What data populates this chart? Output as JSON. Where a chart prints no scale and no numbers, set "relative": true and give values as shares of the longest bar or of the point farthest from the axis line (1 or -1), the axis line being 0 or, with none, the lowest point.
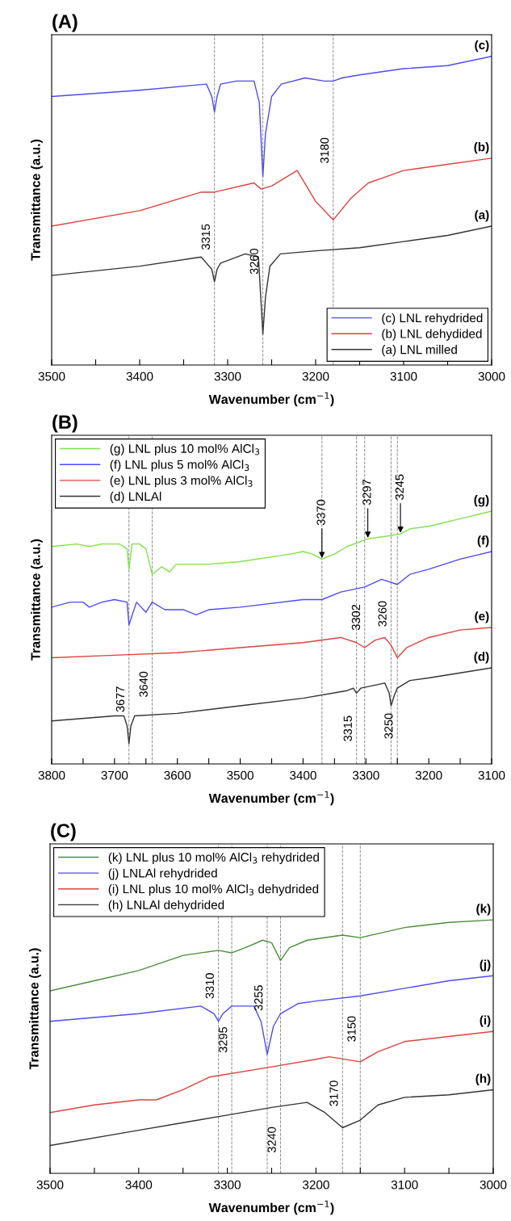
{
  "chart_data": [
    {
      "type": "line",
      "title": "(A)",
      "xlabel": "Wavenumber (cm$^{−1}$)",
      "ylabel": "Transmittance (a.u.)",
      "relative": true,
      "xlim": [
        3500,
        3000
      ],
      "xticks": [
        3500,
        {
          "value": 3450,
          "label": null
        },
        3400,
        {
          "value": 3350,
          "label": null
        },
        3300,
        {
          "value": 3250,
          "label": null
        },
        3200,
        {
          "value": 3150,
          "label": null
        },
        3100,
        {
          "value": 3050,
          "label": null
        },
        3000
      ],
      "legend": "bottom right",
      "series": [
        {
          "name": "(c) LNL rehydrided",
          "color": "#4b4bf5",
          "x": [
            3500,
            3400,
            3324,
            3318,
            3315,
            3312,
            3308,
            3290,
            3270,
            3264,
            3260,
            3257,
            3250,
            3239,
            3212,
            3190,
            3180,
            3170,
            3150,
            3100,
            3050,
            3000
          ],
          "values": [
            0.87,
            0.89,
            0.91,
            0.87,
            0.82,
            0.87,
            0.91,
            0.92,
            0.92,
            0.85,
            0.61,
            0.75,
            0.87,
            0.91,
            0.93,
            0.92,
            0.92,
            0.93,
            0.94,
            0.96,
            0.97,
            1.0
          ]
        },
        {
          "name": "(b) LNL dehydided",
          "color": "#e0413c",
          "x": [
            3500,
            3400,
            3330,
            3315,
            3270,
            3262,
            3250,
            3221,
            3200,
            3180,
            3160,
            3140,
            3120,
            3100,
            3050,
            3000
          ],
          "values": [
            0.45,
            0.5,
            0.56,
            0.56,
            0.59,
            0.57,
            0.58,
            0.63,
            0.53,
            0.47,
            0.54,
            0.59,
            0.61,
            0.63,
            0.65,
            0.67
          ]
        },
        {
          "name": "(a) LNL milled",
          "color": "#333333",
          "x": [
            3500,
            3400,
            3330,
            3318,
            3315,
            3312,
            3308,
            3280,
            3265,
            3262,
            3260,
            3257,
            3252,
            3240,
            3200,
            3150,
            3100,
            3050,
            3000
          ],
          "values": [
            0.29,
            0.32,
            0.35,
            0.31,
            0.27,
            0.31,
            0.33,
            0.36,
            0.35,
            0.2,
            0.1,
            0.22,
            0.32,
            0.36,
            0.37,
            0.38,
            0.4,
            0.42,
            0.45
          ]
        }
      ],
      "ref_lines": [
        {
          "axis": "x",
          "value": 3315,
          "label": "3315",
          "color": "#888888",
          "line_style": "dashed"
        },
        {
          "axis": "x",
          "value": 3260,
          "label": "3260",
          "color": "#888888",
          "line_style": "dashed"
        },
        {
          "axis": "x",
          "value": 3180,
          "label": "3180",
          "color": "#888888",
          "line_style": "dashed"
        }
      ],
      "annotations": [
        {
          "text": "(c)",
          "x": 3000,
          "y": 1.0
        },
        {
          "text": "(b)",
          "x": 3000,
          "y": 0.67
        },
        {
          "text": "(a)",
          "x": 3000,
          "y": 0.45
        }
      ]
    },
    {
      "type": "line",
      "title": "(B)",
      "xlabel": "Wavenumber (cm$^{−1}$)",
      "ylabel": "Transmittance (a.u.)",
      "relative": true,
      "xlim": [
        3800,
        3100
      ],
      "xticks": [
        3800,
        {
          "value": 3750,
          "label": null
        },
        3700,
        {
          "value": 3650,
          "label": null
        },
        3600,
        {
          "value": 3550,
          "label": null
        },
        3500,
        {
          "value": 3450,
          "label": null
        },
        3400,
        {
          "value": 3350,
          "label": null
        },
        3300,
        {
          "value": 3250,
          "label": null
        },
        3200,
        {
          "value": 3150,
          "label": null
        },
        3100
      ],
      "legend": "top left",
      "series": [
        {
          "name": "(g) LNL plus 10 mol% AlCl$_{3}$",
          "color": "#80e34a",
          "x": [
            3800,
            3760,
            3740,
            3720,
            3692,
            3680,
            3677,
            3672,
            3660,
            3650,
            3640,
            3625,
            3612,
            3602,
            3550,
            3500,
            3420,
            3400,
            3385,
            3370,
            3350,
            3330,
            3297,
            3270,
            3245,
            3230,
            3200,
            3150,
            3100
          ],
          "values": [
            0.86,
            0.87,
            0.86,
            0.87,
            0.87,
            0.85,
            0.77,
            0.87,
            0.87,
            0.85,
            0.75,
            0.78,
            0.76,
            0.79,
            0.79,
            0.8,
            0.83,
            0.84,
            0.83,
            0.81,
            0.83,
            0.86,
            0.89,
            0.9,
            0.91,
            0.93,
            0.94,
            0.97,
            1.0
          ]
        },
        {
          "name": "(f) LNL plus 5 mol% AlCl$_{3}$",
          "color": "#4b4bf5",
          "x": [
            3800,
            3770,
            3750,
            3740,
            3720,
            3700,
            3680,
            3677,
            3665,
            3650,
            3640,
            3620,
            3590,
            3570,
            3550,
            3500,
            3400,
            3370,
            3340,
            3302,
            3275,
            3250,
            3230,
            3200,
            3150,
            3100
          ],
          "values": [
            0.62,
            0.64,
            0.64,
            0.62,
            0.64,
            0.65,
            0.64,
            0.55,
            0.64,
            0.6,
            0.64,
            0.61,
            0.61,
            0.59,
            0.61,
            0.62,
            0.65,
            0.65,
            0.68,
            0.7,
            0.73,
            0.71,
            0.75,
            0.77,
            0.81,
            0.84
          ]
        },
        {
          "name": "(e) LNL plus 3 mol% AlCl$_{3}$",
          "color": "#e0413c",
          "x": [
            3800,
            3700,
            3600,
            3500,
            3400,
            3340,
            3315,
            3302,
            3285,
            3270,
            3260,
            3250,
            3235,
            3200,
            3150,
            3100
          ],
          "values": [
            0.42,
            0.43,
            0.44,
            0.46,
            0.48,
            0.5,
            0.48,
            0.46,
            0.49,
            0.5,
            0.47,
            0.42,
            0.46,
            0.5,
            0.53,
            0.54
          ]
        },
        {
          "name": "(d) LNLAl",
          "color": "#333333",
          "x": [
            3800,
            3700,
            3685,
            3680,
            3677,
            3674,
            3668,
            3600,
            3500,
            3400,
            3330,
            3320,
            3315,
            3308,
            3270,
            3263,
            3260,
            3255,
            3250,
            3230,
            3200,
            3150,
            3100
          ],
          "values": [
            0.17,
            0.19,
            0.19,
            0.15,
            0.08,
            0.15,
            0.19,
            0.2,
            0.23,
            0.26,
            0.29,
            0.3,
            0.28,
            0.3,
            0.32,
            0.28,
            0.23,
            0.27,
            0.3,
            0.33,
            0.34,
            0.36,
            0.38
          ]
        }
      ],
      "ref_lines": [
        {
          "axis": "x",
          "value": 3677,
          "label": "3677",
          "color": "#888888",
          "line_style": "dashed"
        },
        {
          "axis": "x",
          "value": 3640,
          "label": "3640",
          "color": "#888888",
          "line_style": "dashed"
        },
        {
          "axis": "x",
          "value": 3370,
          "color": "#888888",
          "line_style": "dashed"
        },
        {
          "axis": "x",
          "value": 3315,
          "label": "3315",
          "color": "#888888",
          "line_style": "dashed"
        },
        {
          "axis": "x",
          "value": 3260,
          "label": "3260",
          "color": "#888888",
          "line_style": "dashed"
        },
        {
          "axis": "x",
          "value": 3302,
          "label": "3302",
          "color": "#888888",
          "line_style": "dashed"
        },
        {
          "axis": "x",
          "value": 3250,
          "label": "3250",
          "color": "#888888",
          "line_style": "dashed"
        }
      ],
      "annotations": [
        {
          "text": "3370",
          "x": 3370,
          "y": 0.81
        },
        {
          "text": "3297",
          "x": 3297,
          "y": 0.89
        },
        {
          "text": "3245",
          "x": 3245,
          "y": 0.91
        },
        {
          "text": "(g)",
          "x": 3100,
          "y": 1.0
        },
        {
          "text": "(f)",
          "x": 3100,
          "y": 0.84
        },
        {
          "text": "(e)",
          "x": 3100,
          "y": 0.54
        },
        {
          "text": "(d)",
          "x": 3100,
          "y": 0.38
        }
      ]
    },
    {
      "type": "line",
      "title": "(C)",
      "xlabel": "Wavenumber (cm$^{−1}$)",
      "ylabel": "Transmittance (a.u.)",
      "relative": true,
      "xlim": [
        3500,
        3000
      ],
      "xticks": [
        3500,
        {
          "value": 3450,
          "label": null
        },
        3400,
        {
          "value": 3350,
          "label": null
        },
        3300,
        {
          "value": 3250,
          "label": null
        },
        3200,
        {
          "value": 3150,
          "label": null
        },
        3100,
        {
          "value": 3050,
          "label": null
        },
        3000
      ],
      "legend": "top left",
      "series": [
        {
          "name": "(k) LNL plus 10 mol% AlCl$_{3}$ rehydrided",
          "color": "#4a8f3a",
          "x": [
            3500,
            3450,
            3400,
            3350,
            3310,
            3295,
            3280,
            3260,
            3250,
            3240,
            3230,
            3210,
            3170,
            3150,
            3100,
            3050,
            3000
          ],
          "values": [
            0.72,
            0.76,
            0.8,
            0.86,
            0.88,
            0.87,
            0.89,
            0.92,
            0.91,
            0.84,
            0.89,
            0.92,
            0.94,
            0.93,
            0.97,
            0.99,
            1.0
          ]
        },
        {
          "name": "(j) LNLAl rehydrided",
          "color": "#4b4bf5",
          "x": [
            3500,
            3400,
            3330,
            3315,
            3310,
            3305,
            3295,
            3270,
            3262,
            3255,
            3248,
            3240,
            3220,
            3200,
            3150,
            3100,
            3050,
            3000
          ],
          "values": [
            0.6,
            0.63,
            0.66,
            0.63,
            0.6,
            0.63,
            0.66,
            0.66,
            0.6,
            0.47,
            0.58,
            0.63,
            0.67,
            0.68,
            0.7,
            0.73,
            0.76,
            0.78
          ]
        },
        {
          "name": "(i) LNL plus 10 mol% AlCl$_{3}$ dehydrided",
          "color": "#e0413c",
          "x": [
            3500,
            3450,
            3400,
            3380,
            3350,
            3320,
            3250,
            3200,
            3185,
            3150,
            3130,
            3100,
            3050,
            3000
          ],
          "values": [
            0.24,
            0.27,
            0.29,
            0.29,
            0.33,
            0.38,
            0.42,
            0.45,
            0.46,
            0.44,
            0.48,
            0.52,
            0.54,
            0.56
          ]
        },
        {
          "name": "(h) LNLAl dehydrided",
          "color": "#333333",
          "x": [
            3500,
            3400,
            3350,
            3300,
            3250,
            3210,
            3190,
            3170,
            3150,
            3130,
            3100,
            3050,
            3000
          ],
          "values": [
            0.11,
            0.17,
            0.2,
            0.23,
            0.26,
            0.28,
            0.24,
            0.18,
            0.21,
            0.27,
            0.3,
            0.31,
            0.33
          ]
        }
      ],
      "ref_lines": [
        {
          "axis": "x",
          "value": 3310,
          "label": "3310",
          "color": "#888888",
          "line_style": "dashed"
        },
        {
          "axis": "x",
          "value": 3295,
          "label": "3295",
          "color": "#888888",
          "line_style": "dashed"
        },
        {
          "axis": "x",
          "value": 3255,
          "label": "3255",
          "color": "#888888",
          "line_style": "dashed"
        },
        {
          "axis": "x",
          "value": 3240,
          "label": "3240",
          "color": "#888888",
          "line_style": "dashed"
        },
        {
          "axis": "x",
          "value": 3170,
          "label": "3170",
          "color": "#888888",
          "line_style": "dashed"
        },
        {
          "axis": "x",
          "value": 3150,
          "label": "3150",
          "color": "#888888",
          "line_style": "dashed"
        }
      ],
      "annotations": [
        {
          "text": "(k)",
          "x": 3000,
          "y": 1.0
        },
        {
          "text": "(j)",
          "x": 3000,
          "y": 0.78
        },
        {
          "text": "(i)",
          "x": 3000,
          "y": 0.56
        },
        {
          "text": "(h)",
          "x": 3000,
          "y": 0.33
        }
      ]
    }
  ]
}
